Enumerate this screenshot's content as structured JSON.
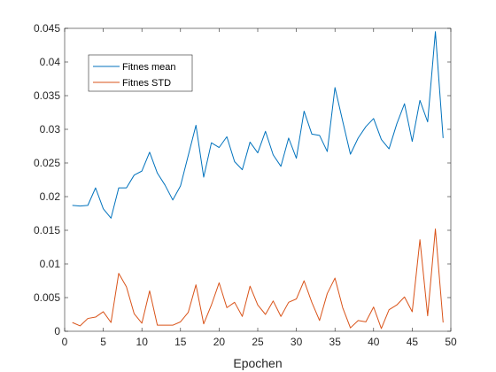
{
  "chart_data": {
    "type": "line",
    "title": "",
    "xlabel": "Epochen",
    "ylabel": "",
    "xlim": [
      0,
      50
    ],
    "ylim": [
      0,
      0.045
    ],
    "xticks": [
      0,
      5,
      10,
      15,
      20,
      25,
      30,
      35,
      40,
      45,
      50
    ],
    "yticks": [
      0,
      0.005,
      0.01,
      0.015,
      0.02,
      0.025,
      0.03,
      0.035,
      0.04,
      0.045
    ],
    "xtick_labels": [
      "0",
      "5",
      "10",
      "15",
      "20",
      "25",
      "30",
      "35",
      "40",
      "45",
      "50"
    ],
    "ytick_labels": [
      "0",
      "0.005",
      "0.01",
      "0.015",
      "0.02",
      "0.025",
      "0.03",
      "0.035",
      "0.04",
      "0.045"
    ],
    "grid": false,
    "legend_position": "top-left",
    "x": [
      1,
      2,
      3,
      4,
      5,
      6,
      7,
      8,
      9,
      10,
      11,
      12,
      13,
      14,
      15,
      16,
      17,
      18,
      19,
      20,
      21,
      22,
      23,
      24,
      25,
      26,
      27,
      28,
      29,
      30,
      31,
      32,
      33,
      34,
      35,
      36,
      37,
      38,
      39,
      40,
      41,
      42,
      43,
      44,
      45,
      46,
      47,
      48,
      49
    ],
    "series": [
      {
        "name": "Fitnes mean",
        "color": "#0072BD",
        "values": [
          0.0187,
          0.0186,
          0.0187,
          0.0213,
          0.0182,
          0.0168,
          0.0213,
          0.0213,
          0.0232,
          0.0238,
          0.0266,
          0.0235,
          0.0217,
          0.0195,
          0.0216,
          0.0261,
          0.0306,
          0.0229,
          0.028,
          0.0273,
          0.0289,
          0.0252,
          0.024,
          0.0281,
          0.0265,
          0.0297,
          0.0262,
          0.0245,
          0.0287,
          0.0257,
          0.0327,
          0.0293,
          0.0291,
          0.0267,
          0.0362,
          0.0312,
          0.0263,
          0.0287,
          0.0304,
          0.0316,
          0.0285,
          0.0271,
          0.0308,
          0.0338,
          0.0282,
          0.0343,
          0.0311,
          0.0445,
          0.0287
        ]
      },
      {
        "name": "Fitnes STD",
        "color": "#D95319",
        "values": [
          0.0013,
          0.0008,
          0.0019,
          0.0021,
          0.0029,
          0.0013,
          0.0086,
          0.0066,
          0.0026,
          0.0012,
          0.006,
          0.0009,
          0.0009,
          0.0009,
          0.0014,
          0.0028,
          0.0069,
          0.0011,
          0.0039,
          0.0072,
          0.0035,
          0.0043,
          0.0022,
          0.0067,
          0.0039,
          0.0025,
          0.0045,
          0.0022,
          0.0043,
          0.0048,
          0.0075,
          0.0043,
          0.0016,
          0.0056,
          0.0079,
          0.0035,
          0.0005,
          0.0016,
          0.0014,
          0.0036,
          0.0004,
          0.0032,
          0.0039,
          0.0051,
          0.0029,
          0.0136,
          0.0023,
          0.0152,
          0.0013
        ]
      }
    ]
  }
}
